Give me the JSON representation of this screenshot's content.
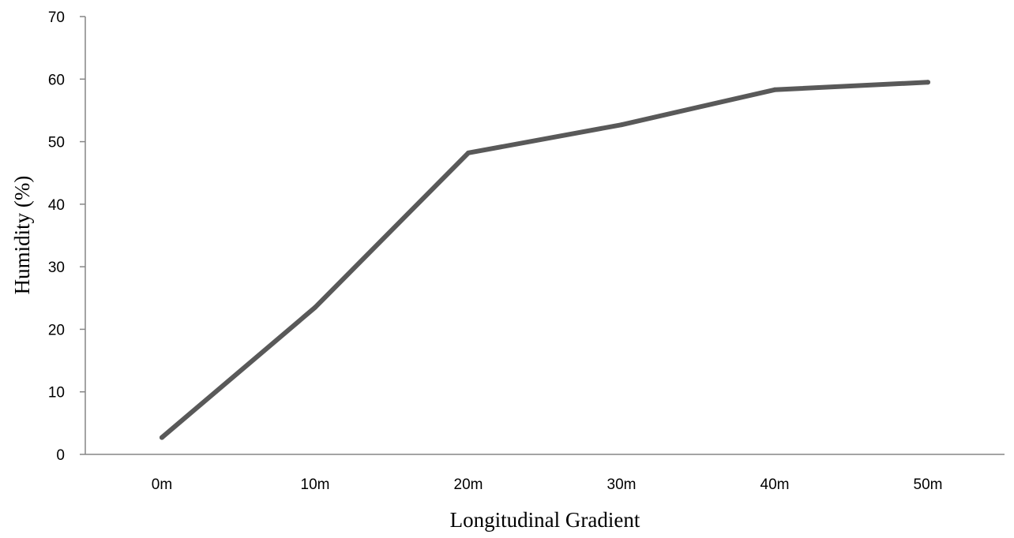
{
  "chart_data": {
    "type": "line",
    "title": "",
    "xlabel": "Longitudinal Gradient",
    "ylabel": "Humidity (%)",
    "categories": [
      "0m",
      "10m",
      "20m",
      "30m",
      "40m",
      "50m"
    ],
    "series": [
      {
        "values": [
          2.7,
          23.5,
          48.2,
          52.7,
          58.3,
          59.5
        ],
        "color": "#595959"
      }
    ],
    "yticks": [
      "0",
      "10",
      "20",
      "30",
      "40",
      "50",
      "60",
      "70"
    ],
    "ylim": [
      0,
      70
    ],
    "grid": false,
    "legend": "none"
  }
}
